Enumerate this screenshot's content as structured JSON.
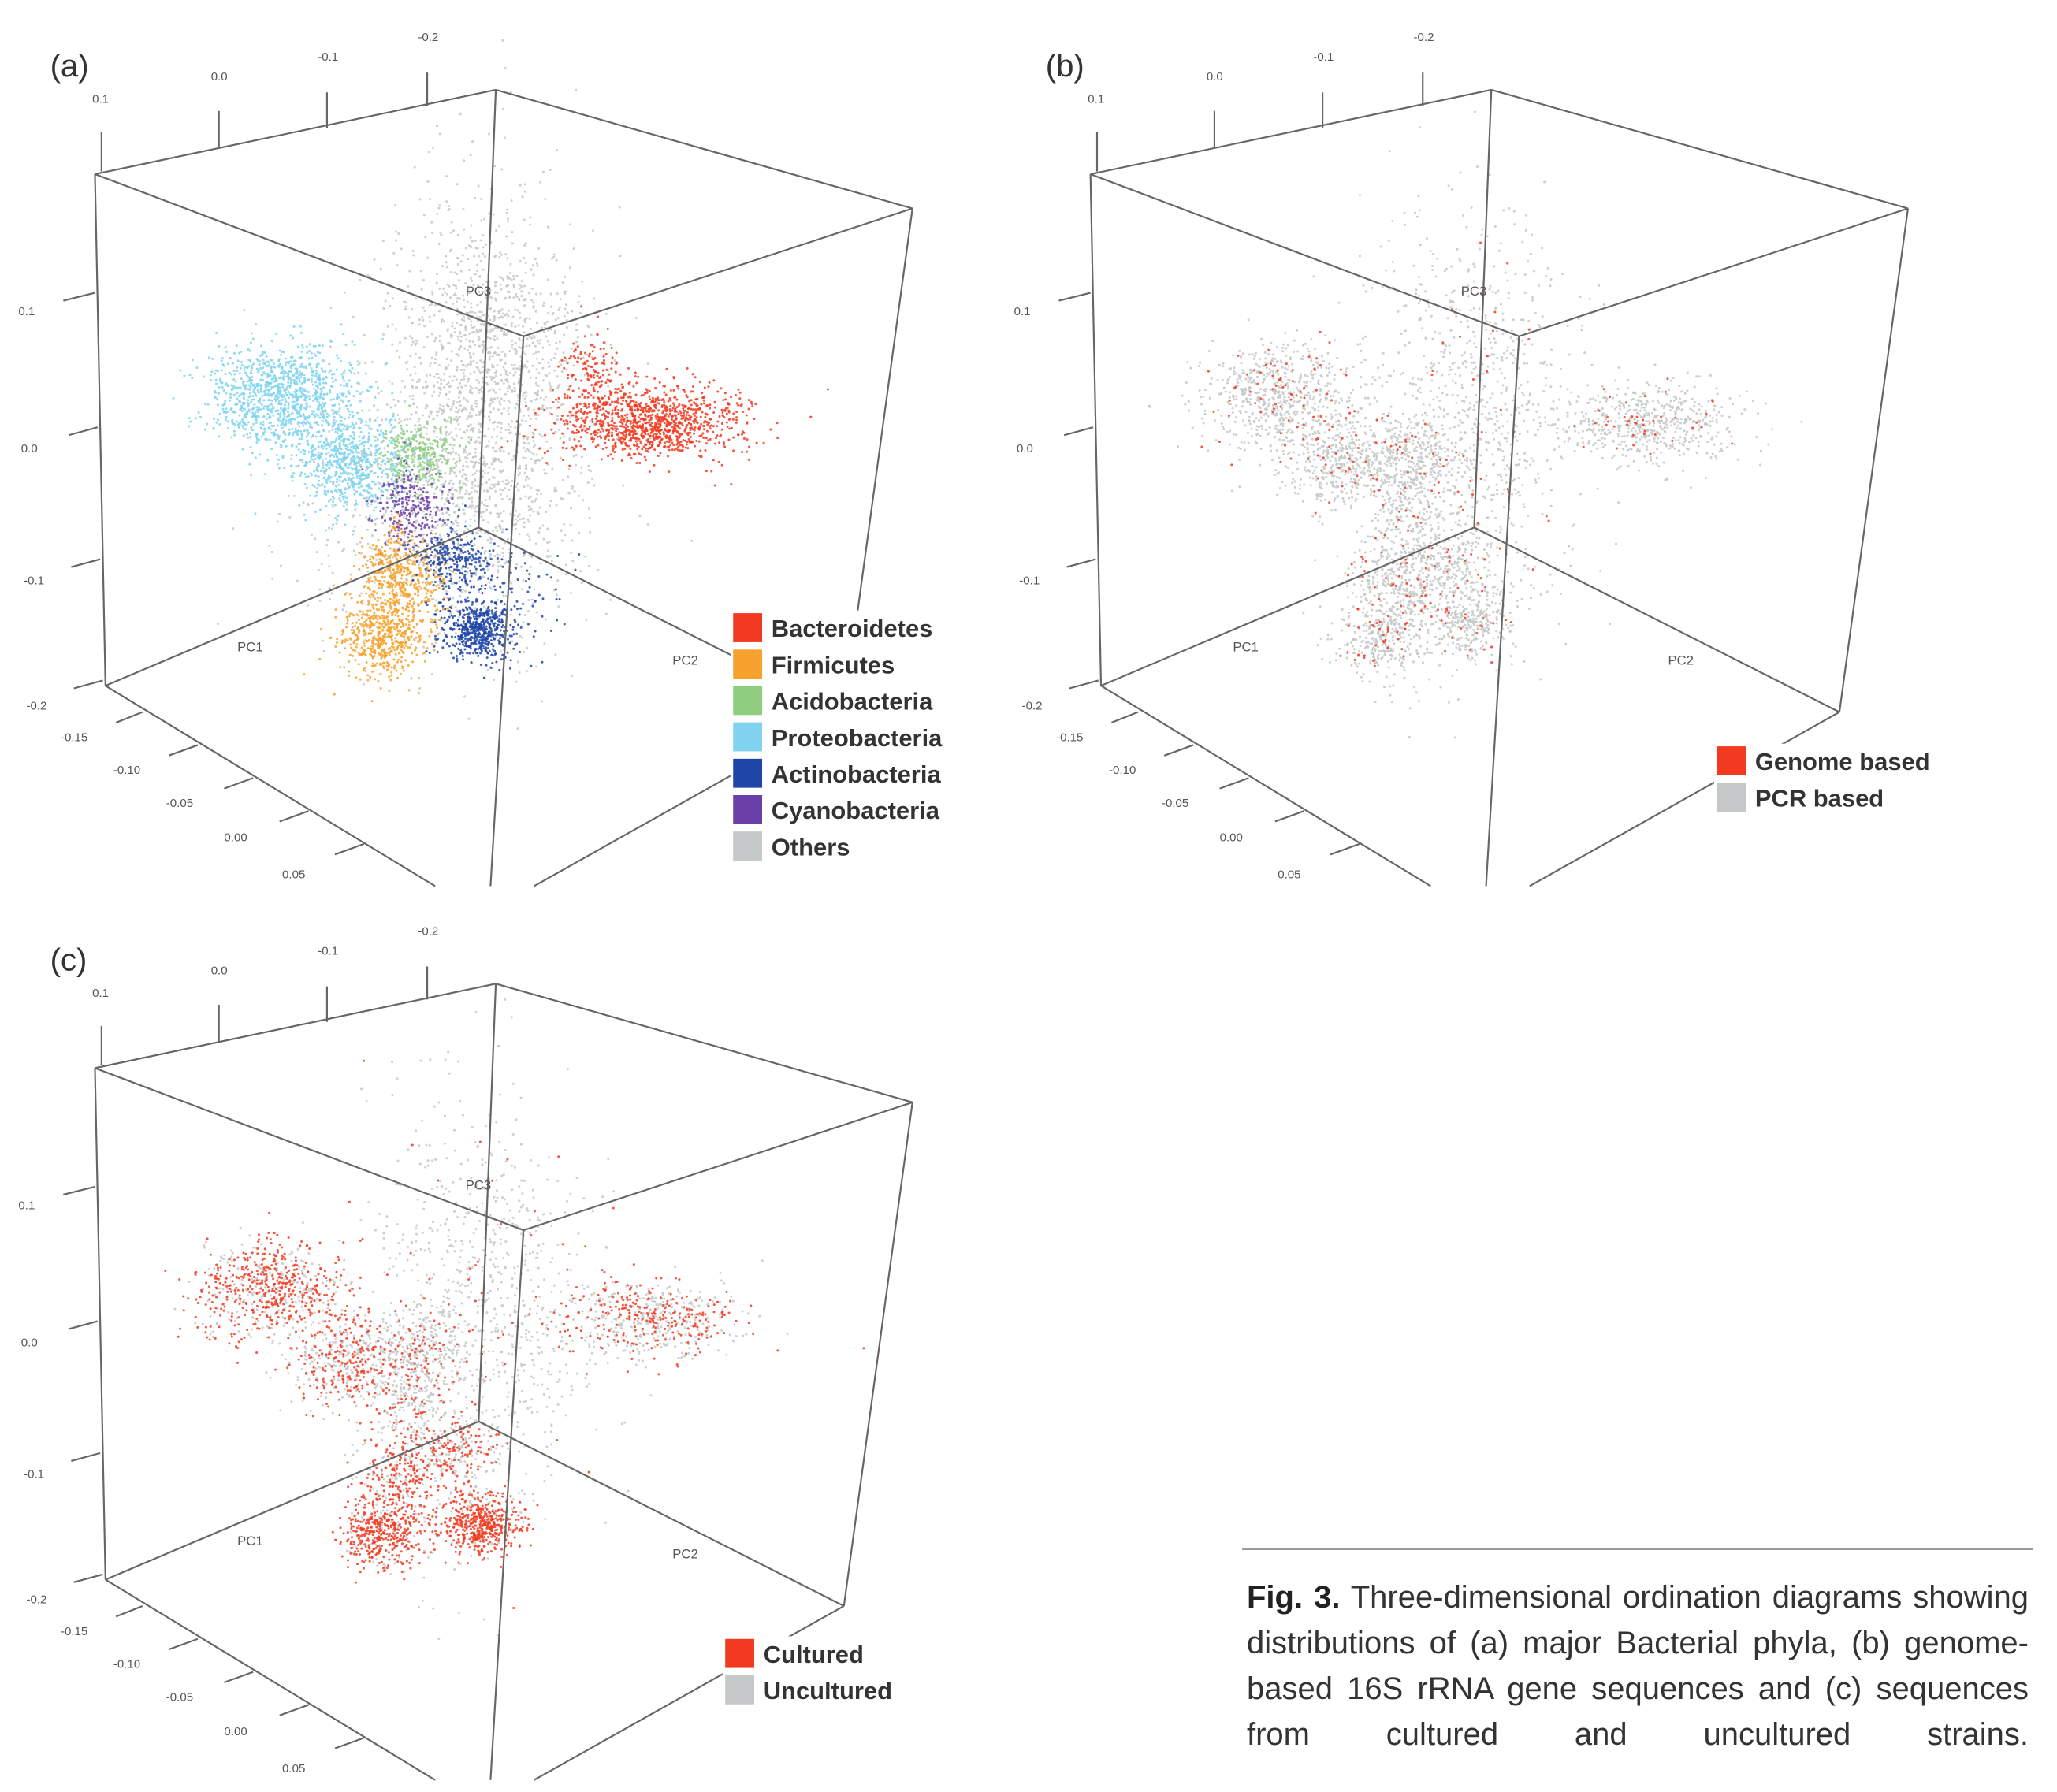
{
  "caption": {
    "label": "Fig. 3.",
    "lines": [
      "Three-dimensional ordination diagrams",
      "showing distributions of (a) major Bacterial phyla,",
      "(b) genome-based 16S rRNA gene sequences and",
      "(c) sequences from cultured and uncultured strains."
    ]
  },
  "chart_data": [
    {
      "type": "scatter3d",
      "panel_label": "(a)",
      "axes": {
        "x": {
          "label": "PC1",
          "ticks": [
            "-0.15",
            "-0.10",
            "-0.05",
            "0.00",
            "0.05"
          ]
        },
        "y": {
          "label": "PC2",
          "ticks": [
            "0.1",
            "0.0",
            "-0.1",
            "-0.2"
          ]
        },
        "z": {
          "label": "PC3",
          "ticks": [
            "0.1",
            "0.0",
            "-0.1",
            "-0.2"
          ]
        }
      },
      "legend_position": "bottom-right",
      "series": [
        {
          "name": "Bacteroidetes",
          "color": "#f23a20"
        },
        {
          "name": "Firmicutes",
          "color": "#f7a22e"
        },
        {
          "name": "Acidobacteria",
          "color": "#8fce7f"
        },
        {
          "name": "Proteobacteria",
          "color": "#7fd3ef"
        },
        {
          "name": "Actinobacteria",
          "color": "#1f45a8"
        },
        {
          "name": "Cyanobacteria",
          "color": "#6b3fa8"
        },
        {
          "name": "Others",
          "color": "#c4c8c8"
        }
      ]
    },
    {
      "type": "scatter3d",
      "panel_label": "(b)",
      "axes": {
        "x": {
          "label": "PC1",
          "ticks": [
            "-0.15",
            "-0.10",
            "-0.05",
            "0.00",
            "0.05"
          ]
        },
        "y": {
          "label": "PC2",
          "ticks": [
            "0.1",
            "0.0",
            "-0.1",
            "-0.2"
          ]
        },
        "z": {
          "label": "PC3",
          "ticks": [
            "0.1",
            "0.0",
            "-0.1",
            "-0.2"
          ]
        }
      },
      "legend_position": "bottom-right",
      "series": [
        {
          "name": "Genome based",
          "color": "#f23a20"
        },
        {
          "name": "PCR based",
          "color": "#c4c8c8"
        }
      ]
    },
    {
      "type": "scatter3d",
      "panel_label": "(c)",
      "axes": {
        "x": {
          "label": "PC1",
          "ticks": [
            "-0.15",
            "-0.10",
            "-0.05",
            "0.00",
            "0.05"
          ]
        },
        "y": {
          "label": "PC2",
          "ticks": [
            "0.1",
            "0.0",
            "-0.1",
            "-0.2"
          ]
        },
        "z": {
          "label": "PC3",
          "ticks": [
            "0.1",
            "0.0",
            "-0.1",
            "-0.2"
          ]
        }
      },
      "legend_position": "bottom-right",
      "series": [
        {
          "name": "Cultured",
          "color": "#f23a20"
        },
        {
          "name": "Uncultured",
          "color": "#c4c8c8"
        }
      ]
    }
  ]
}
